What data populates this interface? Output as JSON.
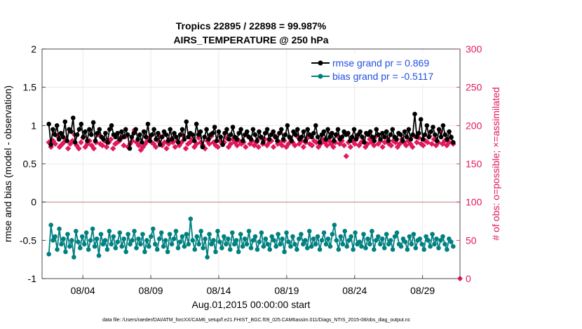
{
  "chart_data": {
    "type": "line",
    "title": "Tropics 22895 / 22898 = 99.987%",
    "subtitle": "AIRS_TEMPERATURE @ 250 hPa",
    "xlabel": "Aug.01,2015 00:00:00 start",
    "ylabel_left": "rmse and bias (model - observation)",
    "ylabel_right": "# of obs: o=possible; ×=assimilated",
    "footer": "data file: /Users/raeder/DAI/ATM_forcXX/CAM6_setup/f.e21.FHIST_BGC.f09_025.CAM6assim.011/Diags_NTrS_2015-08/obs_diag_output.nc",
    "x_ticks": [
      "08/04",
      "08/09",
      "08/14",
      "08/19",
      "08/24",
      "08/29"
    ],
    "x_tick_days": [
      4,
      9,
      14,
      19,
      24,
      29
    ],
    "xlim_days": [
      1.0,
      31.75
    ],
    "ylim_left": [
      -1,
      2
    ],
    "y_ticks_left": [
      "-1",
      "-0.5",
      "0",
      "0.5",
      "1",
      "1.5",
      "2"
    ],
    "y_tick_values_left": [
      -1,
      -0.5,
      0,
      0.5,
      1,
      1.5,
      2
    ],
    "ylim_right": [
      0,
      300
    ],
    "y_ticks_right": [
      "0",
      "50",
      "100",
      "150",
      "200",
      "250",
      "300"
    ],
    "y_tick_values_right": [
      0,
      50,
      100,
      150,
      200,
      250,
      300
    ],
    "grid": true,
    "legend_position": "top-right",
    "colors": {
      "rmse": "#000000",
      "bias": "#008080",
      "obs": "#e0195a",
      "zero_line": "#c8a0a0",
      "legend_text": "#1f4fe0"
    },
    "series": [
      {
        "name": "rmse grand pr = 0.869",
        "axis": "left",
        "values": [
          1.02,
          0.75,
          0.95,
          0.88,
          1.0,
          0.82,
          0.9,
          0.85,
          1.05,
          0.8,
          0.95,
          0.92,
          1.1,
          0.78,
          0.88,
          0.95,
          1.02,
          0.85,
          0.92,
          0.8,
          0.95,
          0.88,
          1.04,
          0.8,
          0.9,
          0.95,
          0.85,
          0.82,
          0.9,
          0.78,
          0.95,
          1.0,
          0.88,
          0.85,
          0.9,
          0.82,
          0.92,
          0.85,
          0.95,
          0.88,
          0.7,
          0.85,
          0.9,
          0.95,
          0.82,
          0.88,
          0.78,
          0.92,
          0.85,
          1.02,
          0.8,
          0.88,
          0.95,
          0.82,
          0.9,
          0.75,
          0.85,
          0.92,
          0.88,
          0.8,
          0.95,
          0.82,
          0.9,
          0.85,
          0.78,
          0.88,
          0.95,
          0.82,
          1.05,
          0.85,
          0.9,
          0.88,
          0.8,
          1.02,
          0.88,
          0.92,
          0.72,
          0.85,
          0.95,
          0.82,
          0.88,
          0.9,
          0.98,
          0.8,
          0.92,
          0.85,
          0.75,
          0.9,
          0.95,
          0.82,
          0.88,
          0.98,
          0.85,
          0.82,
          0.9,
          0.95,
          0.8,
          0.88,
          0.92,
          0.85,
          0.82,
          0.95,
          0.88,
          0.8,
          0.92,
          0.85,
          0.78,
          0.9,
          0.95,
          0.82,
          0.88,
          0.92,
          0.85,
          0.8,
          0.9,
          0.95,
          0.82,
          0.88,
          1.0,
          0.85,
          0.8,
          0.92,
          0.88,
          0.95,
          0.82,
          0.85,
          0.92,
          0.8,
          0.95,
          0.88,
          0.85,
          0.9,
          1.0,
          0.85,
          0.78,
          0.88,
          0.92,
          0.82,
          0.95,
          0.85,
          0.9,
          0.8,
          0.88,
          0.95,
          0.82,
          0.85,
          0.92,
          0.88,
          0.9,
          0.8,
          0.85,
          0.95,
          0.82,
          0.88,
          0.92,
          0.85,
          0.78,
          0.9,
          0.88,
          0.92,
          0.85,
          0.8,
          0.95,
          0.88,
          0.82,
          0.9,
          0.85,
          0.92,
          0.8,
          0.88,
          0.95,
          0.85,
          0.82,
          0.9,
          0.88,
          0.8,
          0.92,
          0.85,
          0.95,
          0.82,
          0.88,
          1.15,
          0.85,
          0.9,
          1.08,
          0.82,
          0.88,
          1.0,
          0.85,
          0.92,
          0.98,
          0.88,
          0.8,
          0.95,
          0.85,
          1.0,
          0.88,
          0.82,
          0.92,
          0.85,
          0.78
        ]
      },
      {
        "name": "bias grand pr = -0.5117",
        "axis": "left",
        "values": [
          -0.68,
          -0.3,
          -0.5,
          -0.45,
          -0.62,
          -0.35,
          -0.55,
          -0.48,
          -0.65,
          -0.42,
          -0.58,
          -0.5,
          -0.72,
          -0.38,
          -0.52,
          -0.6,
          -0.45,
          -0.55,
          -0.4,
          -0.62,
          -0.5,
          -0.35,
          -0.58,
          -0.48,
          -0.7,
          -0.42,
          -0.55,
          -0.5,
          -0.62,
          -0.38,
          -0.55,
          -0.45,
          -0.6,
          -0.52,
          -0.4,
          -0.58,
          -0.48,
          -0.65,
          -0.42,
          -0.55,
          -0.5,
          -0.38,
          -0.6,
          -0.48,
          -0.55,
          -0.42,
          -0.65,
          -0.5,
          -0.58,
          -0.45,
          -0.35,
          -0.55,
          -0.62,
          -0.48,
          -0.4,
          -0.58,
          -0.5,
          -0.65,
          -0.42,
          -0.55,
          -0.48,
          -0.38,
          -0.6,
          -0.52,
          -0.45,
          -0.58,
          -0.42,
          -0.55,
          -0.22,
          -0.5,
          -0.62,
          -0.45,
          -0.55,
          -0.38,
          -0.6,
          -0.48,
          -0.72,
          -0.42,
          -0.55,
          -0.5,
          -0.65,
          -0.38,
          -0.52,
          -0.6,
          -0.45,
          -0.55,
          -0.48,
          -0.62,
          -0.4,
          -0.55,
          -0.5,
          -0.65,
          -0.42,
          -0.58,
          -0.48,
          -0.55,
          -0.38,
          -0.6,
          -0.5,
          -0.45,
          -0.62,
          -0.52,
          -0.4,
          -0.58,
          -0.48,
          -0.55,
          -0.62,
          -0.45,
          -0.5,
          -0.58,
          -0.42,
          -0.55,
          -0.48,
          -0.65,
          -0.4,
          -0.52,
          -0.58,
          -0.45,
          -0.55,
          -0.62,
          -0.48,
          -0.42,
          -0.55,
          -0.5,
          -0.6,
          -0.38,
          -0.58,
          -0.48,
          -0.55,
          -0.45,
          -0.62,
          -0.5,
          -0.4,
          -0.55,
          -0.48,
          -0.58,
          -0.42,
          -0.3,
          -0.5,
          -0.62,
          -0.45,
          -0.55,
          -0.38,
          -0.58,
          -0.5,
          -0.45,
          -0.62,
          -0.4,
          -0.55,
          -0.52,
          -0.58,
          -0.42,
          -0.6,
          -0.48,
          -0.55,
          -0.38,
          -0.62,
          -0.5,
          -0.45,
          -0.55,
          -0.48,
          -0.6,
          -0.42,
          -0.55,
          -0.5,
          -0.62,
          -0.45,
          -0.4,
          -0.55,
          -0.58,
          -0.48,
          -0.52,
          -0.62,
          -0.45,
          -0.55,
          -0.42,
          -0.6,
          -0.5,
          -0.48,
          -0.55,
          -0.62,
          -0.45,
          -0.5,
          -0.58,
          -0.42,
          -0.55,
          -0.48,
          -0.6,
          -0.5,
          -0.45,
          -0.55,
          -0.62,
          -0.48,
          -0.52,
          -0.58
        ]
      },
      {
        "name": "# of obs assimilated",
        "axis": "right",
        "values": [
          178,
          172,
          180,
          176,
          186,
          172,
          175,
          178,
          182,
          170,
          176,
          180,
          188,
          174,
          170,
          178,
          184,
          172,
          176,
          180,
          174,
          170,
          178,
          188,
          176,
          174,
          180,
          172,
          178,
          182,
          170,
          176,
          178,
          180,
          184,
          174,
          186,
          172,
          176,
          180,
          194,
          178,
          174,
          168,
          172,
          176,
          180,
          184,
          178,
          176,
          172,
          180,
          186,
          174,
          178,
          170,
          176,
          182,
          178,
          172,
          180,
          174,
          178,
          186,
          170,
          176,
          178,
          182,
          172,
          176,
          184,
          178,
          174,
          170,
          180,
          176,
          186,
          178,
          174,
          172,
          180,
          176,
          178,
          184,
          172,
          176,
          182,
          178,
          174,
          180,
          176,
          178,
          172,
          186,
          176,
          180,
          174,
          178,
          172,
          184,
          176,
          182,
          174,
          178,
          180,
          172,
          186,
          176,
          178,
          174,
          180,
          172,
          176,
          182,
          178,
          174,
          186,
          176,
          180,
          172,
          178,
          184,
          176,
          174,
          180,
          178,
          172,
          176,
          182,
          178,
          174,
          180,
          176,
          172,
          178,
          186,
          176,
          180,
          174,
          160,
          178,
          172,
          180,
          176,
          184,
          174,
          178,
          180,
          172,
          176,
          182,
          178,
          174,
          186,
          176,
          180,
          172,
          178,
          184,
          176,
          174,
          180,
          178,
          172,
          176,
          182,
          178,
          174,
          180,
          176,
          172,
          186,
          178,
          184,
          176,
          174,
          180,
          178,
          186,
          176,
          182,
          174,
          178,
          192,
          176,
          180,
          174,
          178,
          184,
          176
        ]
      }
    ]
  }
}
